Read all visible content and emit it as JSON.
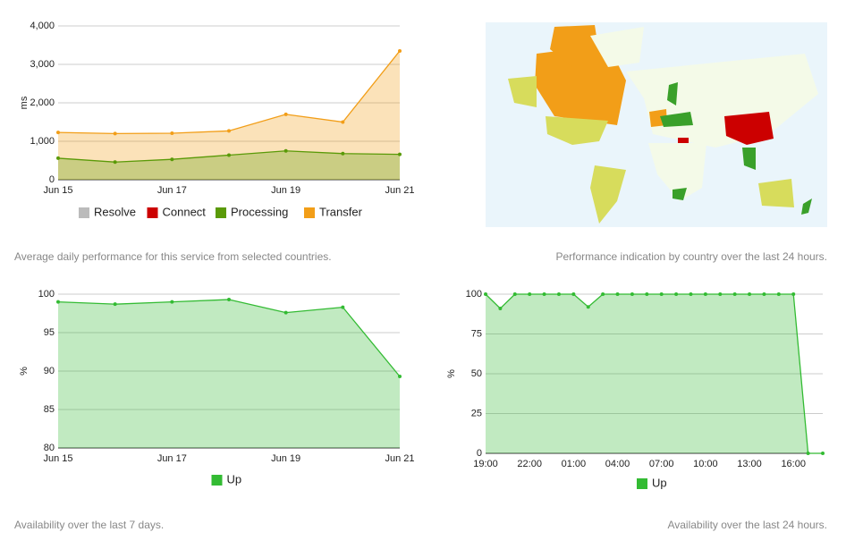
{
  "chart_data": [
    {
      "type": "area",
      "y_label": "ms",
      "caption": "Average daily performance for this service from selected countries.",
      "categories": [
        "Jun 15",
        null,
        "Jun 17",
        null,
        "Jun 19",
        null,
        "Jun 21"
      ],
      "series": [
        {
          "name": "Resolve",
          "color": "#bbbbbb",
          "values": [
            null,
            null,
            null,
            null,
            null,
            null,
            null
          ]
        },
        {
          "name": "Connect",
          "color": "#cc0000",
          "values": [
            null,
            null,
            null,
            null,
            null,
            null,
            null
          ]
        },
        {
          "name": "Processing",
          "color": "#5a9a08",
          "values": [
            560,
            460,
            530,
            640,
            750,
            680,
            660
          ]
        },
        {
          "name": "Transfer",
          "color": "#f29e18",
          "values": [
            1230,
            1200,
            1210,
            1270,
            1700,
            1500,
            3350
          ]
        }
      ],
      "ylim": [
        0,
        4000
      ],
      "yticks": [
        0,
        {
          "value": 1000,
          "label": "1,000"
        },
        {
          "value": 2000,
          "label": "2,000"
        },
        {
          "value": 3000,
          "label": "3,000"
        },
        {
          "value": 4000,
          "label": "4,000"
        }
      ],
      "grid": true
    },
    {
      "type": "map",
      "caption": "Performance indication by country over the last 24 hours."
    },
    {
      "type": "area",
      "y_label": "%",
      "caption": "Availability over the last 7 days.",
      "categories": [
        "Jun 15",
        null,
        "Jun 17",
        null,
        "Jun 19",
        null,
        "Jun 21"
      ],
      "series": [
        {
          "name": "Up",
          "color": "#33bb33",
          "values": [
            99,
            98.7,
            99,
            99.3,
            97.6,
            98.3,
            89.3
          ]
        }
      ],
      "ylim": [
        80,
        100
      ],
      "yticks": [
        80,
        85,
        90,
        95,
        100
      ],
      "grid": true
    },
    {
      "type": "area",
      "y_label": "%",
      "caption": "Availability over the last 24 hours.",
      "categories": [
        "19:00",
        null,
        null,
        "22:00",
        null,
        null,
        "01:00",
        null,
        null,
        "04:00",
        null,
        null,
        "07:00",
        null,
        null,
        "10:00",
        null,
        null,
        "13:00",
        null,
        null,
        "16:00",
        null,
        null
      ],
      "series": [
        {
          "name": "Up",
          "color": "#33bb33",
          "values": [
            100,
            91,
            100,
            100,
            100,
            100,
            100,
            92,
            100,
            100,
            100,
            100,
            100,
            100,
            100,
            100,
            100,
            100,
            100,
            100,
            100,
            100,
            0,
            0
          ]
        }
      ],
      "ylim": [
        0,
        100
      ],
      "yticks": [
        0,
        25,
        50,
        75,
        100
      ],
      "grid": true
    }
  ]
}
